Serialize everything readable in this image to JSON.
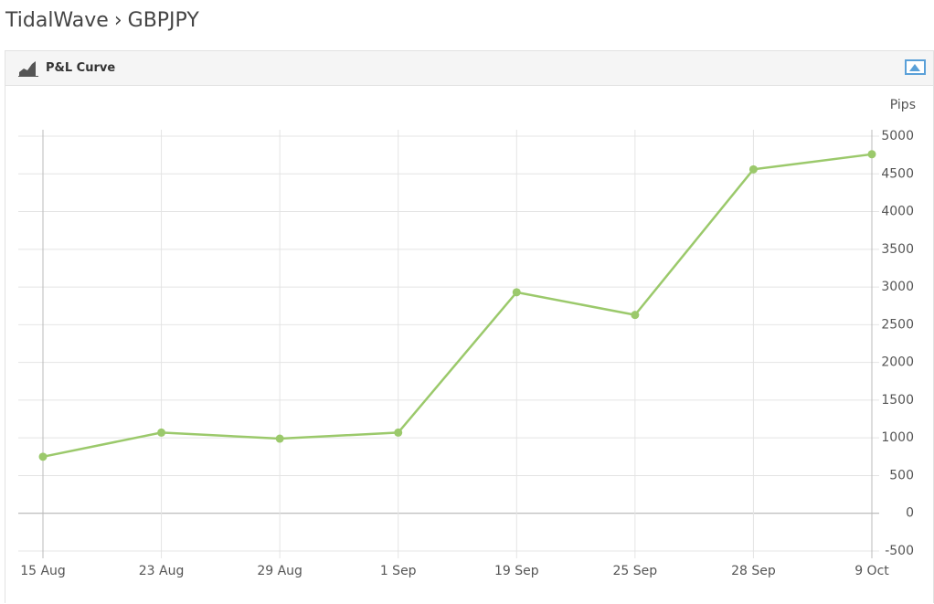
{
  "header": {
    "app": "TidalWave",
    "separator": "›",
    "symbol": "GBPJPY"
  },
  "panel": {
    "title": "P&L Curve"
  },
  "chart_data": {
    "type": "line",
    "y_label": "Pips",
    "categories": [
      "15 Aug",
      "23 Aug",
      "29 Aug",
      "1 Sep",
      "19 Sep",
      "25 Sep",
      "28 Sep",
      "9 Oct"
    ],
    "values": [
      750,
      1070,
      990,
      1070,
      2930,
      2630,
      4560,
      4760
    ],
    "color": "#9bc96b",
    "ylim": [
      -500,
      5000
    ],
    "yticks": [
      -500,
      0,
      500,
      1000,
      1500,
      2000,
      2500,
      3000,
      3500,
      4000,
      4500,
      5000
    ],
    "grid": true
  }
}
